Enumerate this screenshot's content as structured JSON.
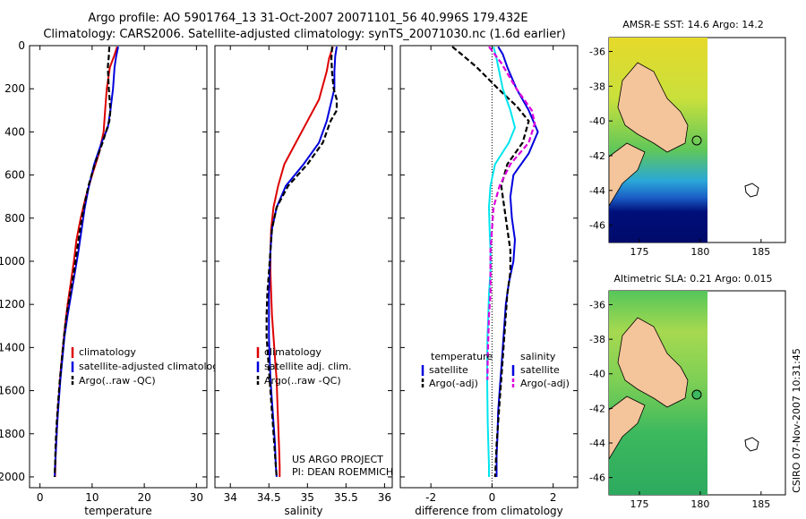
{
  "header": {
    "line1": "Argo profile: AO 5901764_13 31-Oct-2007 20071101_56 40.996S 179.432E",
    "line2": "Climatology: CARS2006. Satellite-adjusted climatology: synTS_20071030.nc (1.6d earlier)"
  },
  "side_label": "CSIRO 07-Nov-2007 10:31:45",
  "credit": {
    "line1": "US ARGO PROJECT",
    "line2": "PI: DEAN ROEMMICH"
  },
  "colors": {
    "red": "#dd0000",
    "blue": "#0000dd",
    "black": "#000000",
    "cyan": "#00e5ee",
    "magenta": "#dd00dd"
  },
  "chart_data": [
    {
      "type": "line",
      "id": "temperature",
      "xlabel": "temperature",
      "xlim": [
        -2,
        32
      ],
      "ylim": [
        2050,
        0
      ],
      "xticks": [
        "0",
        "10",
        "20",
        "30"
      ],
      "xtick_values": [
        0,
        10,
        20,
        30
      ],
      "yticks": [
        "0",
        "200",
        "400",
        "600",
        "800",
        "1000",
        "1200",
        "1400",
        "1600",
        "1800",
        "2000"
      ],
      "ytick_values": [
        0,
        200,
        400,
        600,
        800,
        1000,
        1200,
        1400,
        1600,
        1800,
        2000
      ],
      "legend": [
        "climatology",
        "satellite-adjusted climatology",
        "Argo(..raw -QC)"
      ],
      "series": [
        {
          "name": "climatology",
          "color": "red",
          "dash": false,
          "points": [
            [
              14.8,
              5
            ],
            [
              14.2,
              50
            ],
            [
              13.4,
              100
            ],
            [
              12.8,
              200
            ],
            [
              12.5,
              300
            ],
            [
              12.2,
              400
            ],
            [
              11.3,
              500
            ],
            [
              10.0,
              600
            ],
            [
              8.8,
              700
            ],
            [
              7.8,
              800
            ],
            [
              7.0,
              900
            ],
            [
              6.5,
              1000
            ],
            [
              5.9,
              1100
            ],
            [
              5.3,
              1200
            ],
            [
              4.8,
              1300
            ],
            [
              4.4,
              1400
            ],
            [
              4.0,
              1500
            ],
            [
              3.7,
              1600
            ],
            [
              3.4,
              1700
            ],
            [
              3.2,
              1800
            ],
            [
              3.0,
              1900
            ],
            [
              2.9,
              2000
            ]
          ]
        },
        {
          "name": "satellite-adjusted climatology",
          "color": "blue",
          "dash": false,
          "points": [
            [
              15.0,
              5
            ],
            [
              14.6,
              50
            ],
            [
              14.3,
              100
            ],
            [
              14.0,
              200
            ],
            [
              13.5,
              300
            ],
            [
              13.0,
              380
            ],
            [
              11.8,
              450
            ],
            [
              10.4,
              550
            ],
            [
              9.4,
              650
            ],
            [
              8.6,
              750
            ],
            [
              8.0,
              850
            ],
            [
              7.4,
              950
            ],
            [
              6.7,
              1050
            ],
            [
              6.0,
              1150
            ],
            [
              5.3,
              1250
            ],
            [
              4.7,
              1350
            ],
            [
              4.3,
              1450
            ],
            [
              3.9,
              1550
            ],
            [
              3.6,
              1650
            ],
            [
              3.3,
              1750
            ],
            [
              3.1,
              1850
            ],
            [
              2.9,
              1950
            ],
            [
              2.8,
              2000
            ]
          ]
        },
        {
          "name": "Argo(..raw -QC)",
          "color": "black",
          "dash": true,
          "points": [
            [
              13.3,
              5
            ],
            [
              13.2,
              50
            ],
            [
              13.0,
              100
            ],
            [
              13.2,
              200
            ],
            [
              13.5,
              300
            ],
            [
              13.3,
              350
            ],
            [
              12.0,
              450
            ],
            [
              10.5,
              550
            ],
            [
              9.3,
              650
            ],
            [
              8.4,
              750
            ],
            [
              7.7,
              850
            ],
            [
              7.1,
              950
            ],
            [
              6.5,
              1050
            ],
            [
              5.8,
              1150
            ],
            [
              5.1,
              1250
            ],
            [
              4.6,
              1350
            ],
            [
              4.2,
              1450
            ],
            [
              3.8,
              1550
            ],
            [
              3.5,
              1650
            ],
            [
              3.2,
              1750
            ],
            [
              3.0,
              1850
            ],
            [
              2.9,
              1950
            ],
            [
              2.8,
              2000
            ]
          ]
        }
      ]
    },
    {
      "type": "line",
      "id": "salinity",
      "xlabel": "salinity",
      "xlim": [
        33.8,
        36.1
      ],
      "ylim": [
        2050,
        0
      ],
      "xticks": [
        "34",
        "34.5",
        "35",
        "35.5",
        "36"
      ],
      "xtick_values": [
        34,
        34.5,
        35,
        35.5,
        36
      ],
      "legend": [
        "climatology",
        "satellite adj. clim.",
        "Argo(..raw -QC)"
      ],
      "series": [
        {
          "name": "climatology",
          "color": "red",
          "dash": false,
          "points": [
            [
              35.33,
              5
            ],
            [
              35.28,
              60
            ],
            [
              35.25,
              120
            ],
            [
              35.15,
              250
            ],
            [
              35.0,
              350
            ],
            [
              34.85,
              450
            ],
            [
              34.7,
              550
            ],
            [
              34.62,
              650
            ],
            [
              34.56,
              750
            ],
            [
              34.53,
              850
            ],
            [
              34.52,
              950
            ],
            [
              34.52,
              1050
            ],
            [
              34.53,
              1150
            ],
            [
              34.54,
              1250
            ],
            [
              34.56,
              1350
            ],
            [
              34.58,
              1450
            ],
            [
              34.6,
              1550
            ],
            [
              34.61,
              1650
            ],
            [
              34.62,
              1750
            ],
            [
              34.63,
              1850
            ],
            [
              34.64,
              1950
            ],
            [
              34.64,
              2000
            ]
          ]
        },
        {
          "name": "satellite adj. clim.",
          "color": "blue",
          "dash": false,
          "points": [
            [
              35.38,
              5
            ],
            [
              35.36,
              50
            ],
            [
              35.35,
              120
            ],
            [
              35.35,
              200
            ],
            [
              35.25,
              350
            ],
            [
              35.15,
              450
            ],
            [
              34.95,
              550
            ],
            [
              34.72,
              650
            ],
            [
              34.6,
              750
            ],
            [
              34.54,
              850
            ],
            [
              34.52,
              950
            ],
            [
              34.51,
              1050
            ],
            [
              34.5,
              1150
            ],
            [
              34.5,
              1250
            ],
            [
              34.5,
              1350
            ],
            [
              34.51,
              1450
            ],
            [
              34.52,
              1550
            ],
            [
              34.54,
              1650
            ],
            [
              34.56,
              1750
            ],
            [
              34.58,
              1850
            ],
            [
              34.59,
              1950
            ],
            [
              34.6,
              2000
            ]
          ]
        },
        {
          "name": "Argo(..raw -QC)",
          "color": "black",
          "dash": true,
          "points": [
            [
              35.32,
              5
            ],
            [
              35.31,
              60
            ],
            [
              35.32,
              130
            ],
            [
              35.34,
              200
            ],
            [
              35.38,
              250
            ],
            [
              35.38,
              300
            ],
            [
              35.3,
              350
            ],
            [
              35.2,
              450
            ],
            [
              35.0,
              550
            ],
            [
              34.75,
              650
            ],
            [
              34.6,
              750
            ],
            [
              34.54,
              850
            ],
            [
              34.52,
              950
            ],
            [
              34.5,
              1050
            ],
            [
              34.48,
              1150
            ],
            [
              34.47,
              1250
            ],
            [
              34.47,
              1350
            ],
            [
              34.49,
              1450
            ],
            [
              34.51,
              1550
            ],
            [
              34.53,
              1650
            ],
            [
              34.55,
              1750
            ],
            [
              34.57,
              1850
            ],
            [
              34.59,
              1950
            ],
            [
              34.6,
              2000
            ]
          ]
        }
      ]
    },
    {
      "type": "line",
      "id": "difference",
      "xlabel": "difference from climatology",
      "xlim": [
        -3,
        2.8
      ],
      "ylim": [
        2050,
        0
      ],
      "xticks": [
        "-2",
        "0",
        "2"
      ],
      "xtick_values": [
        -2,
        0,
        2
      ],
      "legend_left": {
        "header": "temperature",
        "items": [
          "satellite",
          "Argo(-adj)"
        ]
      },
      "legend_right": {
        "header": "salinity",
        "items": [
          "satellite",
          "Argo(-adj)"
        ]
      },
      "series": [
        {
          "name": "temperature satellite",
          "color": "blue",
          "dash": false,
          "points": [
            [
              0.2,
              5
            ],
            [
              0.35,
              40
            ],
            [
              0.5,
              100
            ],
            [
              0.8,
              200
            ],
            [
              1.2,
              300
            ],
            [
              1.5,
              400
            ],
            [
              1.2,
              500
            ],
            [
              0.7,
              600
            ],
            [
              0.6,
              700
            ],
            [
              0.65,
              800
            ],
            [
              0.75,
              900
            ],
            [
              0.7,
              1000
            ],
            [
              0.55,
              1100
            ],
            [
              0.45,
              1200
            ],
            [
              0.4,
              1300
            ],
            [
              0.35,
              1400
            ],
            [
              0.3,
              1500
            ],
            [
              0.25,
              1600
            ],
            [
              0.2,
              1700
            ],
            [
              0.18,
              1800
            ],
            [
              0.15,
              1900
            ],
            [
              0.15,
              2000
            ]
          ]
        },
        {
          "name": "temperature Argo(-adj)",
          "color": "black",
          "dash": true,
          "points": [
            [
              -1.3,
              5
            ],
            [
              -1.0,
              40
            ],
            [
              -0.5,
              100
            ],
            [
              0.2,
              200
            ],
            [
              0.8,
              280
            ],
            [
              1.2,
              350
            ],
            [
              1.0,
              450
            ],
            [
              0.5,
              550
            ],
            [
              0.3,
              650
            ],
            [
              0.4,
              750
            ],
            [
              0.5,
              850
            ],
            [
              0.6,
              950
            ],
            [
              0.6,
              1050
            ],
            [
              0.5,
              1150
            ],
            [
              0.45,
              1250
            ],
            [
              0.4,
              1350
            ],
            [
              0.35,
              1450
            ],
            [
              0.3,
              1550
            ],
            [
              0.25,
              1650
            ],
            [
              0.2,
              1750
            ],
            [
              0.15,
              1850
            ],
            [
              0.12,
              1950
            ],
            [
              0.1,
              2000
            ]
          ]
        },
        {
          "name": "salinity satellite",
          "color": "cyan",
          "dash": false,
          "points": [
            [
              0.05,
              5
            ],
            [
              0.15,
              60
            ],
            [
              0.35,
              200
            ],
            [
              0.6,
              300
            ],
            [
              0.75,
              380
            ],
            [
              0.55,
              450
            ],
            [
              0.1,
              550
            ],
            [
              -0.05,
              650
            ],
            [
              -0.1,
              750
            ],
            [
              -0.08,
              850
            ],
            [
              -0.05,
              950
            ],
            [
              -0.05,
              1050
            ],
            [
              -0.1,
              1150
            ],
            [
              -0.12,
              1250
            ],
            [
              -0.15,
              1350
            ],
            [
              -0.16,
              1450
            ],
            [
              -0.16,
              1550
            ],
            [
              -0.15,
              1650
            ],
            [
              -0.14,
              1750
            ],
            [
              -0.12,
              1850
            ],
            [
              -0.1,
              1950
            ],
            [
              -0.1,
              2000
            ]
          ]
        },
        {
          "name": "salinity Argo(-adj)",
          "color": "magenta",
          "dash": true,
          "points": [
            [
              -0.1,
              5
            ],
            [
              0.3,
              80
            ],
            [
              0.8,
              200
            ],
            [
              1.3,
              300
            ],
            [
              1.4,
              360
            ],
            [
              1.2,
              450
            ],
            [
              0.6,
              550
            ],
            [
              0.25,
              650
            ],
            [
              0.05,
              750
            ],
            [
              0.0,
              850
            ],
            [
              -0.05,
              950
            ],
            [
              -0.05,
              1050
            ],
            [
              -0.05,
              1150
            ],
            [
              -0.1,
              1250
            ],
            [
              -0.12,
              1350
            ],
            [
              -0.14,
              1450
            ],
            [
              -0.15,
              1550
            ]
          ]
        }
      ]
    }
  ],
  "maps": [
    {
      "title": "AMSR-E SST: 14.6 Argo: 14.2",
      "xticks": [
        "175",
        "180",
        "185"
      ],
      "yticks": [
        "-36",
        "-38",
        "-40",
        "-42",
        "-44",
        "-46"
      ]
    },
    {
      "title": "Altimetric SLA: 0.21 Argo: 0.015",
      "xticks": [
        "175",
        "180",
        "185"
      ],
      "yticks": [
        "-36",
        "-38",
        "-40",
        "-42",
        "-44",
        "-46"
      ]
    }
  ]
}
